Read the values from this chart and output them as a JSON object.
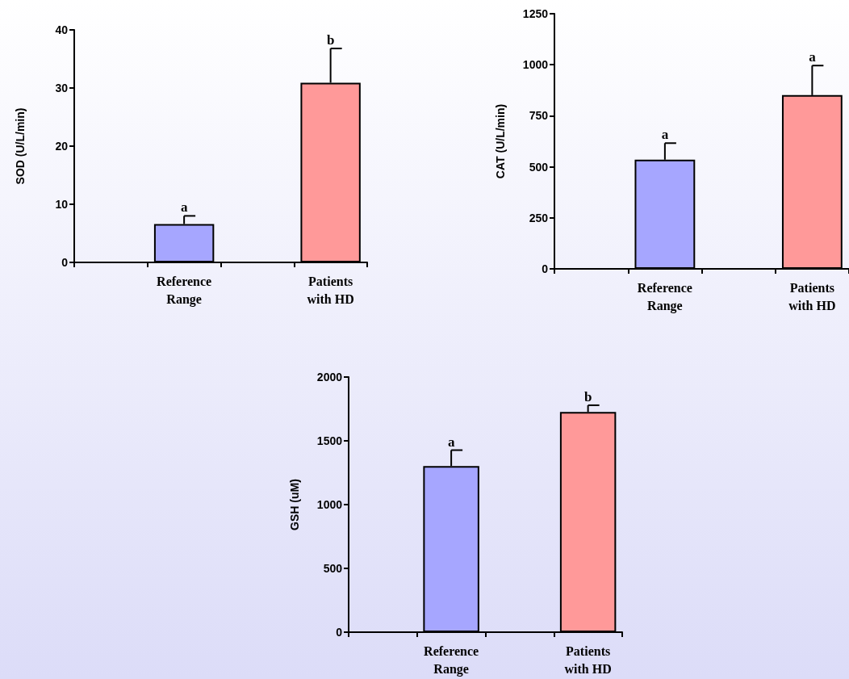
{
  "chart_data": [
    {
      "type": "bar",
      "ylabel": "SOD (U/L/min)",
      "categories": [
        null,
        "Reference Range",
        null,
        "Patients with HD"
      ],
      "values": [
        null,
        6.6,
        null,
        30.9
      ],
      "colors": [
        null,
        "#a6a6ff",
        null,
        "#ff9999"
      ],
      "errors": [
        null,
        [
          6.6,
          8.0
        ],
        null,
        [
          30.9,
          36.8
        ]
      ],
      "ylim": [
        0,
        40
      ],
      "yticks": [
        0,
        10,
        20,
        30,
        40
      ],
      "grid": false,
      "annotations": [
        {
          "text": "a",
          "x": "Reference Range",
          "y": 8.0
        },
        {
          "text": "b",
          "x": "Patients with HD",
          "y": 36.8
        }
      ]
    },
    {
      "type": "bar",
      "ylabel": "CAT (U/L/min)",
      "categories": [
        null,
        "Reference Range",
        null,
        "Patients with HD"
      ],
      "values": [
        null,
        535,
        null,
        851
      ],
      "colors": [
        null,
        "#a6a6ff",
        null,
        "#ff9999"
      ],
      "errors": [
        null,
        [
          535,
          616
        ],
        null,
        [
          851,
          996
        ]
      ],
      "ylim": [
        0,
        1250
      ],
      "yticks": [
        0,
        250,
        500,
        750,
        1000,
        1250
      ],
      "grid": false,
      "annotations": [
        {
          "text": "a",
          "x": "Reference Range",
          "y": 616
        },
        {
          "text": "a",
          "x": "Patients with HD",
          "y": 996
        }
      ]
    },
    {
      "type": "bar",
      "ylabel": "GSH (uM)",
      "categories": [
        null,
        "Reference Range",
        null,
        "Patients with HD"
      ],
      "values": [
        null,
        1303,
        null,
        1726
      ],
      "colors": [
        null,
        "#a6a6ff",
        null,
        "#ff9999"
      ],
      "errors": [
        null,
        [
          1303,
          1427
        ],
        null,
        [
          1726,
          1779
        ]
      ],
      "ylim": [
        0,
        2000
      ],
      "yticks": [
        0,
        500,
        1000,
        1500,
        2000
      ],
      "grid": false,
      "annotations": [
        {
          "text": "a",
          "x": "Reference Range",
          "y": 1427
        },
        {
          "text": "b",
          "x": "Patients with HD",
          "y": 1779
        }
      ]
    }
  ]
}
